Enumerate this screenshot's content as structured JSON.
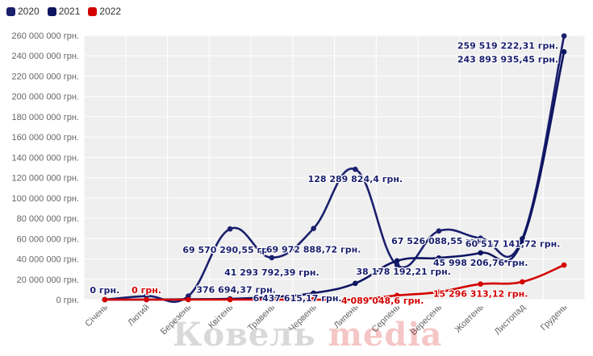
{
  "chart_data": {
    "type": "line",
    "title": "",
    "xlabel": "",
    "ylabel": "",
    "categories": [
      "Січень",
      "Лютий",
      "Березень",
      "Квітень",
      "Травень",
      "Червень",
      "Липень",
      "Серпень",
      "Вересень",
      "Жовтень",
      "Листопад",
      "Грудень"
    ],
    "ylim": [
      0,
      260000000
    ],
    "yticks": [
      0,
      20000000,
      40000000,
      60000000,
      80000000,
      100000000,
      120000000,
      140000000,
      160000000,
      180000000,
      200000000,
      220000000,
      240000000,
      260000000
    ],
    "ytick_labels": [
      "0 грн.",
      "20 000 000 грн.",
      "40 000 000 грн.",
      "60 000 000 грн.",
      "80 000 000 грн.",
      "100 000 000 грн.",
      "120 000 000 грн.",
      "140 000 000 грн.",
      "160 000 000 грн.",
      "180 000 000 грн.",
      "200 000 000 грн.",
      "220 000 000 грн.",
      "240 000 000 грн.",
      "260 000 000 грн."
    ],
    "grid": true,
    "legend_position": "top-left",
    "series": [
      {
        "name": "2020",
        "color": "#1a1f6e",
        "values": [
          0,
          3500000,
          3500000,
          69570290.55,
          41293792.39,
          69972888.72,
          128289824.4,
          34000000,
          67526088.55,
          60517141.72,
          60000000,
          259519222.31
        ]
      },
      {
        "name": "2021",
        "color": "#0d1461",
        "values": [
          0,
          0,
          376694.37,
          800000,
          2500000,
          6437615.17,
          16000000,
          38178192.21,
          41000000,
          45998206.76,
          58000000,
          243893935.45
        ]
      },
      {
        "name": "2022",
        "color": "#d40000",
        "values": [
          0,
          0,
          0,
          0,
          0,
          0,
          0,
          4089048.6,
          7500000,
          15296313.12,
          17500000,
          34000000
        ]
      }
    ],
    "annotations": [
      {
        "text": "0 грн.",
        "color": "#1a1f6e",
        "x": "Січень",
        "y": 0
      },
      {
        "text": "0 грн.",
        "color": "#d40000",
        "x": "Лютий",
        "y": 0
      },
      {
        "text": "376 694,37 грн.",
        "color": "#1a1f6e",
        "x": "Березень",
        "y": 376694.37
      },
      {
        "text": "69 570 290,55 грн.",
        "color": "#1a1f6e",
        "x": "Квітень",
        "y": 69570290.55
      },
      {
        "text": "41 293 792,39 грн.",
        "color": "#1a1f6e",
        "x": "Травень",
        "y": 41293792.39
      },
      {
        "text": "69 972 888,72 грн.",
        "color": "#1a1f6e",
        "x": "Червень",
        "y": 69972888.72
      },
      {
        "text": "6 437 615,17 грн.",
        "color": "#1a1f6e",
        "x": "Червень",
        "y": 6437615.17
      },
      {
        "text": "128 289 824,4 грн.",
        "color": "#1a1f6e",
        "x": "Липень",
        "y": 128289824.4
      },
      {
        "text": "38 178 192,21 грн.",
        "color": "#1a1f6e",
        "x": "Серпень",
        "y": 38178192.21
      },
      {
        "text": "4 089 048,6 грн.",
        "color": "#d40000",
        "x": "Серпень",
        "y": 4089048.6
      },
      {
        "text": "67 526 088,55 грн.",
        "color": "#1a1f6e",
        "x": "Вересень",
        "y": 67526088.55
      },
      {
        "text": "45 998 206,76 грн.",
        "color": "#1a1f6e",
        "x": "Жовтень",
        "y": 45998206.76
      },
      {
        "text": "15 296 313,12 грн.",
        "color": "#d40000",
        "x": "Жовтень",
        "y": 15296313.12
      },
      {
        "text": "60 517 141,72 грн.",
        "color": "#1a1f6e",
        "x": "Жовтень",
        "y": 60517141.72
      },
      {
        "text": "259 519 222,31 грн.",
        "color": "#1a1f6e",
        "x": "Грудень",
        "y": 259519222.31
      },
      {
        "text": "243 893 935,45 грн.",
        "color": "#1a1f6e",
        "x": "Грудень",
        "y": 243893935.45
      }
    ]
  },
  "watermark": {
    "part1": "Ковельмedia",
    "part1_main": "Ковель ",
    "part2": "media"
  }
}
